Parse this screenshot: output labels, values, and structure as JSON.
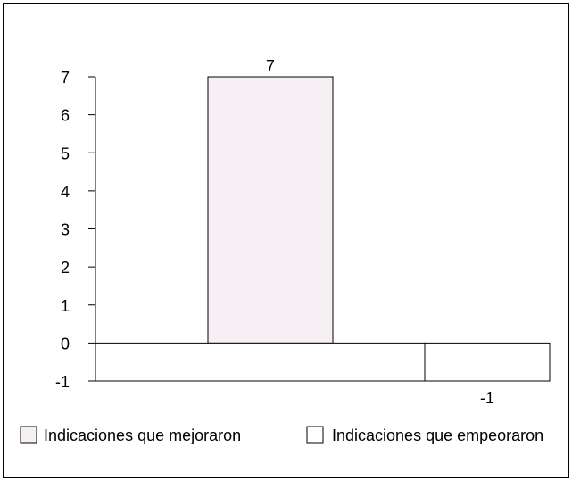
{
  "chart_data": {
    "type": "bar",
    "title": "",
    "xlabel": "",
    "ylabel": "",
    "ylim": [
      -1,
      7
    ],
    "yticks": [
      -1,
      0,
      1,
      2,
      3,
      4,
      5,
      6,
      7
    ],
    "grid": false,
    "legend_position": "bottom",
    "series": [
      {
        "name": "Indicaciones que mejoraron",
        "value": 7,
        "data_label": "7",
        "color": "#f6f0f4"
      },
      {
        "name": "Indicaciones que empeoraron",
        "value": -1,
        "data_label": "-1",
        "color": "#ffffff"
      }
    ]
  }
}
